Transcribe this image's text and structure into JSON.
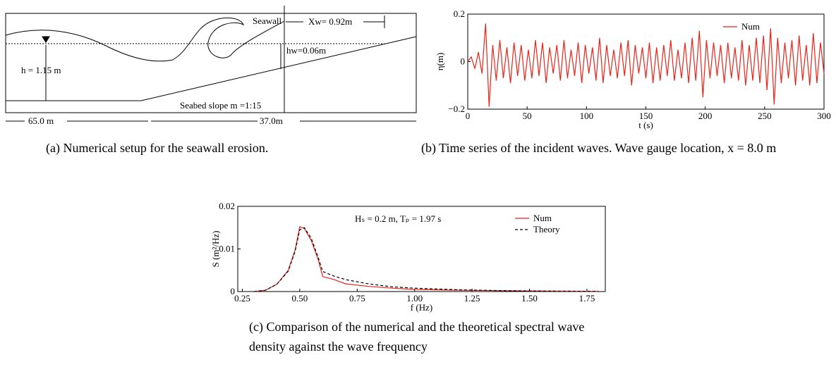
{
  "panel_a": {
    "seawall": "Seawall",
    "xw": "Xw= 0.92m",
    "hw": "hw=0.06m",
    "h": "h = 1.15 m",
    "slope": "Seabed slope m =1:15",
    "dist1": "65.0 m",
    "dist2": "37.0m",
    "caption": "(a) Numerical setup for the seawall erosion."
  },
  "chart_data": [
    {
      "type": "line",
      "caption": "(b) Time series of the incident waves. Wave gauge location, x = 8.0 m",
      "x_label": "t (s)",
      "y_label": "η(m)",
      "legend": "upper right",
      "xlim": [
        0,
        300
      ],
      "xticks": [
        0,
        50,
        100,
        150,
        200,
        250,
        300
      ],
      "ylim": [
        -0.2,
        0.2
      ],
      "yticks": [
        {
          "value": -0.2,
          "label": "−0.2"
        },
        0,
        0.2
      ],
      "x": [
        0,
        3,
        6,
        9,
        12,
        15,
        18,
        21,
        24,
        27,
        30,
        33,
        36,
        39,
        42,
        45,
        48,
        51,
        54,
        57,
        60,
        63,
        66,
        69,
        72,
        75,
        78,
        81,
        84,
        87,
        90,
        93,
        96,
        99,
        102,
        105,
        108,
        111,
        114,
        117,
        120,
        123,
        126,
        129,
        132,
        135,
        138,
        141,
        144,
        147,
        150,
        153,
        156,
        159,
        162,
        165,
        168,
        171,
        174,
        177,
        180,
        183,
        186,
        189,
        192,
        195,
        198,
        201,
        204,
        207,
        210,
        213,
        216,
        219,
        222,
        225,
        228,
        231,
        234,
        237,
        240,
        243,
        246,
        249,
        252,
        255,
        258,
        261,
        264,
        267,
        270,
        273,
        276,
        279,
        282,
        285,
        288,
        291,
        294,
        297,
        300
      ],
      "series": [
        {
          "name": "Num",
          "color": "#e8231a",
          "values": [
            0,
            0.02,
            -0.03,
            0.04,
            -0.05,
            0.16,
            -0.19,
            0.07,
            -0.08,
            0.09,
            -0.07,
            0.06,
            -0.09,
            0.08,
            -0.06,
            0.07,
            -0.08,
            0.05,
            -0.07,
            0.09,
            -0.06,
            0.08,
            -0.09,
            0.06,
            -0.05,
            0.07,
            -0.08,
            0.09,
            -0.07,
            0.05,
            -0.06,
            0.08,
            -0.09,
            0.07,
            -0.05,
            0.06,
            -0.08,
            0.1,
            -0.09,
            0.07,
            -0.06,
            0.05,
            -0.07,
            0.08,
            -0.06,
            0.09,
            -0.1,
            0.07,
            -0.05,
            0.06,
            -0.07,
            0.08,
            -0.09,
            0.06,
            -0.08,
            0.07,
            -0.06,
            0.09,
            -0.08,
            0.05,
            -0.07,
            0.08,
            -0.09,
            0.1,
            -0.08,
            0.13,
            -0.15,
            0.09,
            -0.07,
            0.08,
            -0.06,
            0.07,
            -0.09,
            0.08,
            -0.07,
            0.06,
            -0.08,
            0.09,
            -0.1,
            0.07,
            -0.08,
            0.1,
            -0.09,
            0.11,
            -0.12,
            0.14,
            -0.18,
            0.1,
            -0.09,
            0.08,
            -0.07,
            0.09,
            -0.1,
            0.11,
            -0.08,
            0.07,
            -0.1,
            0.12,
            -0.09,
            0.08,
            -0.05
          ]
        }
      ]
    },
    {
      "type": "line",
      "caption": "(c) Comparison of the numerical and the theoretical spectral wave density against the wave frequency",
      "x_label": "f (Hz)",
      "y_label": "S (m²/Hz)",
      "annotation": "Hₛ = 0.2 m, Tₚ = 1.97 s",
      "legend": "upper right",
      "xlim": [
        0.23,
        1.83
      ],
      "xticks": [
        0.25,
        {
          "value": 0.5,
          "label": "0.50"
        },
        0.75,
        {
          "value": 1,
          "label": "1.00"
        },
        1.25,
        {
          "value": 1.5,
          "label": "1.50"
        },
        1.75
      ],
      "ylim": [
        0,
        0.02
      ],
      "yticks": [
        0,
        0.01,
        0.02
      ],
      "x": [
        0.3,
        0.35,
        0.4,
        0.45,
        0.48,
        0.5,
        0.52,
        0.55,
        0.58,
        0.6,
        0.65,
        0.7,
        0.8,
        0.9,
        1.0,
        1.2,
        1.4,
        1.6,
        1.8
      ],
      "series": [
        {
          "name": "Num",
          "color": "#e8231a",
          "dash": false,
          "values": [
            0,
            0.0003,
            0.0017,
            0.005,
            0.0098,
            0.0152,
            0.0148,
            0.012,
            0.0075,
            0.0035,
            0.0028,
            0.0018,
            0.0012,
            0.0008,
            0.0005,
            0.0003,
            0.0002,
            0.0001,
            5e-05
          ]
        },
        {
          "name": "Theory",
          "color": "#000000",
          "dash": true,
          "values": [
            0,
            0.0003,
            0.0017,
            0.0048,
            0.0095,
            0.0145,
            0.015,
            0.0125,
            0.008,
            0.0047,
            0.0036,
            0.0028,
            0.0018,
            0.0011,
            0.0008,
            0.0004,
            0.0002,
            0.0001,
            5e-05
          ]
        }
      ]
    }
  ]
}
